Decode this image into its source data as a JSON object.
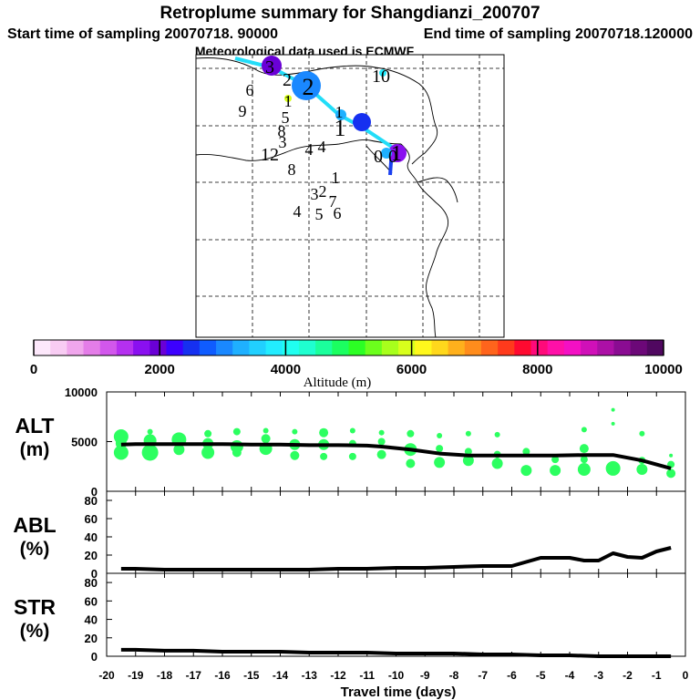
{
  "header": {
    "title": "Retroplume summary for Shangdianzi_200707",
    "start": "Start time of sampling 20070718. 90000",
    "end": "End time of sampling 20070718.120000",
    "met": "Meteorological data used is ECMWF"
  },
  "colorbar": {
    "label": "Altitude (m)",
    "ticks": [
      "0",
      "2000",
      "4000",
      "6000",
      "8000",
      "10000"
    ],
    "colors": [
      "#fde8fb",
      "#f8ccf3",
      "#f0a6ec",
      "#e47de8",
      "#d257ec",
      "#b530f0",
      "#8a10f0",
      "#6a00d6",
      "#3c00ff",
      "#1630f0",
      "#0f5cff",
      "#1a88ff",
      "#1fb0ff",
      "#21d0ff",
      "#22ecff",
      "#20fff0",
      "#1fffd0",
      "#1bff9c",
      "#1bff60",
      "#2cff24",
      "#6cff1c",
      "#a8ff1c",
      "#d8ff1c",
      "#fff81c",
      "#ffd81c",
      "#ffb01c",
      "#ff8c1c",
      "#ff641c",
      "#ff3a1c",
      "#ff0a30",
      "#ff0a7a",
      "#ff10a8",
      "#f410c4",
      "#d010b8",
      "#ac10a6",
      "#8a0c92",
      "#6c0878",
      "#500860"
    ]
  },
  "map": {
    "labels": [
      {
        "t": "3"
      },
      {
        "t": "2"
      },
      {
        "t": "2"
      },
      {
        "t": "6"
      },
      {
        "t": "9"
      },
      {
        "t": "1"
      },
      {
        "t": "5"
      },
      {
        "t": "8"
      },
      {
        "t": "3"
      },
      {
        "t": "12"
      },
      {
        "t": "8"
      },
      {
        "t": "4"
      },
      {
        "t": "4"
      },
      {
        "t": "1"
      },
      {
        "t": "1"
      },
      {
        "t": "1"
      },
      {
        "t": "10"
      },
      {
        "t": "0"
      },
      {
        "t": "0"
      },
      {
        "t": "1"
      },
      {
        "t": "3"
      },
      {
        "t": "2"
      },
      {
        "t": "7"
      },
      {
        "t": "4"
      },
      {
        "t": "5"
      },
      {
        "t": "6"
      }
    ]
  },
  "chart_data": [
    {
      "type": "scatter+line",
      "panel": "ALT",
      "ylabel": [
        "ALT",
        "(m)"
      ],
      "ylim": [
        0,
        10000
      ],
      "yticks": [
        "0",
        "5000",
        "10000"
      ],
      "x": [
        -19.5,
        -19,
        -18,
        -17,
        -16,
        -15,
        -14,
        -13,
        -12,
        -11,
        -10.5,
        -9.5,
        -8.5,
        -7.5,
        -6.5,
        -5.5,
        -4.5,
        -3.5,
        -2.5,
        -1.5,
        -0.5
      ],
      "line": [
        4700,
        4750,
        4750,
        4750,
        4750,
        4700,
        4700,
        4650,
        4650,
        4600,
        4500,
        4200,
        3800,
        3600,
        3600,
        3600,
        3600,
        3650,
        3650,
        3100,
        2300
      ],
      "points": [
        {
          "x": -19.5,
          "y": 5500,
          "s": 8
        },
        {
          "x": -19.5,
          "y": 4800,
          "s": 6
        },
        {
          "x": -19.5,
          "y": 3900,
          "s": 8
        },
        {
          "x": -18.5,
          "y": 6000,
          "s": 3
        },
        {
          "x": -18.5,
          "y": 5100,
          "s": 7
        },
        {
          "x": -18.5,
          "y": 3900,
          "s": 9
        },
        {
          "x": -17.5,
          "y": 5200,
          "s": 8
        },
        {
          "x": -17.5,
          "y": 4200,
          "s": 6
        },
        {
          "x": -16.5,
          "y": 5800,
          "s": 4
        },
        {
          "x": -16.5,
          "y": 4800,
          "s": 6
        },
        {
          "x": -16.5,
          "y": 3900,
          "s": 7
        },
        {
          "x": -15.5,
          "y": 6000,
          "s": 4
        },
        {
          "x": -15.5,
          "y": 4500,
          "s": 7
        },
        {
          "x": -15.5,
          "y": 3900,
          "s": 5
        },
        {
          "x": -14.5,
          "y": 6100,
          "s": 3
        },
        {
          "x": -14.5,
          "y": 5300,
          "s": 5
        },
        {
          "x": -14.5,
          "y": 4300,
          "s": 7
        },
        {
          "x": -13.5,
          "y": 6000,
          "s": 3
        },
        {
          "x": -13.5,
          "y": 4700,
          "s": 6
        },
        {
          "x": -13.5,
          "y": 3600,
          "s": 5
        },
        {
          "x": -12.5,
          "y": 5900,
          "s": 5
        },
        {
          "x": -12.5,
          "y": 4700,
          "s": 6
        },
        {
          "x": -12.5,
          "y": 3500,
          "s": 4
        },
        {
          "x": -11.5,
          "y": 6100,
          "s": 3
        },
        {
          "x": -11.5,
          "y": 4800,
          "s": 4
        },
        {
          "x": -11.5,
          "y": 3500,
          "s": 4
        },
        {
          "x": -10.5,
          "y": 5900,
          "s": 3
        },
        {
          "x": -10.5,
          "y": 5000,
          "s": 4
        },
        {
          "x": -10.5,
          "y": 3700,
          "s": 5
        },
        {
          "x": -9.5,
          "y": 5800,
          "s": 4
        },
        {
          "x": -9.5,
          "y": 4200,
          "s": 7
        },
        {
          "x": -9.5,
          "y": 2800,
          "s": 5
        },
        {
          "x": -8.5,
          "y": 5600,
          "s": 3
        },
        {
          "x": -8.5,
          "y": 4300,
          "s": 4
        },
        {
          "x": -8.5,
          "y": 2900,
          "s": 6
        },
        {
          "x": -7.5,
          "y": 5800,
          "s": 3
        },
        {
          "x": -7.5,
          "y": 4000,
          "s": 4
        },
        {
          "x": -7.5,
          "y": 3100,
          "s": 6
        },
        {
          "x": -6.5,
          "y": 5700,
          "s": 3
        },
        {
          "x": -6.5,
          "y": 3700,
          "s": 4
        },
        {
          "x": -6.5,
          "y": 2800,
          "s": 6
        },
        {
          "x": -5.5,
          "y": 4000,
          "s": 4
        },
        {
          "x": -5.5,
          "y": 2100,
          "s": 6
        },
        {
          "x": -4.5,
          "y": 3200,
          "s": 4
        },
        {
          "x": -4.5,
          "y": 2100,
          "s": 6
        },
        {
          "x": -3.5,
          "y": 6200,
          "s": 3
        },
        {
          "x": -3.5,
          "y": 4300,
          "s": 5
        },
        {
          "x": -3.5,
          "y": 3200,
          "s": 4
        },
        {
          "x": -3.5,
          "y": 2200,
          "s": 7
        },
        {
          "x": -2.5,
          "y": 8200,
          "s": 2
        },
        {
          "x": -2.5,
          "y": 6800,
          "s": 2
        },
        {
          "x": -2.5,
          "y": 2300,
          "s": 8
        },
        {
          "x": -1.5,
          "y": 5800,
          "s": 3
        },
        {
          "x": -1.5,
          "y": 3100,
          "s": 4
        },
        {
          "x": -1.5,
          "y": 2200,
          "s": 6
        },
        {
          "x": -0.5,
          "y": 3600,
          "s": 2
        },
        {
          "x": -0.5,
          "y": 2700,
          "s": 4
        },
        {
          "x": -0.5,
          "y": 1800,
          "s": 5
        }
      ]
    },
    {
      "type": "line",
      "panel": "ABL",
      "ylabel": [
        "ABL",
        "(%)"
      ],
      "ylim": [
        0,
        90
      ],
      "yticks": [
        "0",
        "20",
        "40",
        "60",
        "80"
      ],
      "x": [
        -19.5,
        -19,
        -18,
        -17,
        -16,
        -15,
        -14,
        -13,
        -12,
        -11,
        -10,
        -9,
        -8,
        -7,
        -6.5,
        -6,
        -5,
        -4,
        -3.5,
        -3,
        -2.5,
        -2,
        -1.5,
        -1,
        -0.5
      ],
      "values": [
        5,
        5,
        4,
        4,
        4,
        4,
        4,
        4,
        5,
        5,
        6,
        6,
        7,
        8,
        8,
        8,
        17,
        17,
        14,
        14,
        22,
        18,
        17,
        24,
        28
      ]
    },
    {
      "type": "line",
      "panel": "STR",
      "ylabel": [
        "STR",
        "(%)"
      ],
      "ylim": [
        0,
        90
      ],
      "yticks": [
        "0",
        "20",
        "40",
        "60",
        "80"
      ],
      "x": [
        -19.5,
        -19,
        -18,
        -17,
        -16,
        -15,
        -14,
        -13,
        -12,
        -11,
        -10,
        -9,
        -8,
        -7,
        -6,
        -5,
        -4,
        -3,
        -2,
        -1,
        -0.5
      ],
      "values": [
        7,
        7,
        6,
        6,
        5,
        5,
        5,
        4,
        4,
        4,
        3,
        3,
        3,
        2,
        2,
        1,
        1,
        0,
        0,
        0,
        0
      ]
    }
  ],
  "xaxis": {
    "ticks": [
      "-20",
      "-19",
      "-18",
      "-17",
      "-16",
      "-15",
      "-14",
      "-13",
      "-12",
      "-11",
      "-10",
      "-9",
      "-8",
      "-7",
      "-6",
      "-5",
      "-4",
      "-3",
      "-2",
      "-1",
      "0"
    ],
    "label": "Travel time (days)"
  }
}
